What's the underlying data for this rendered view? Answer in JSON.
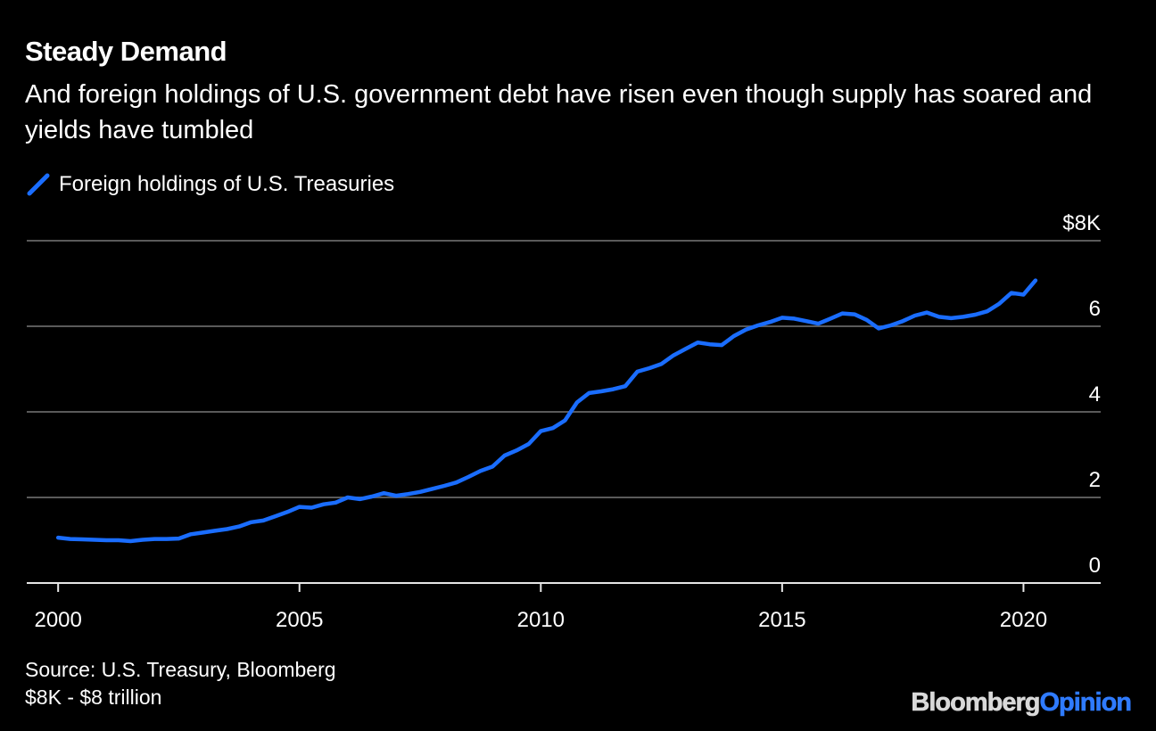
{
  "title": "Steady Demand",
  "subtitle": "And foreign holdings of U.S. government debt have risen even though supply has soared and yields have tumbled",
  "legend_label": "Foreign holdings of U.S. Treasuries",
  "source_line1": "Source: U.S. Treasury, Bloomberg",
  "source_line2": "$8K - $8 trillion",
  "logo": {
    "brand": "Bloomberg",
    "opinion": "Opinion"
  },
  "colors": {
    "background": "#000000",
    "line": "#1a6dff",
    "grid": "#5a5a5a",
    "text": "#ffffff",
    "logo_brand": "#d9d9d9",
    "logo_accent": "#2f7bff"
  },
  "chart_data": {
    "type": "line",
    "title": "Steady Demand",
    "subtitle": "And foreign holdings of U.S. government debt have risen even though supply has soared and yields have tumbled",
    "xlabel": "",
    "ylabel": "",
    "xlim": [
      1999.35,
      2021.6
    ],
    "ylim": [
      0,
      8
    ],
    "x_ticks": [
      2000,
      2005,
      2010,
      2015,
      2020
    ],
    "y_ticks": [
      0,
      2,
      4,
      6,
      8
    ],
    "y_tick_labels": [
      "0",
      "2",
      "4",
      "6",
      "$8K"
    ],
    "grid": true,
    "legend_position": "top-left",
    "series": [
      {
        "name": "Foreign holdings of U.S. Treasuries",
        "color": "#1a6dff",
        "points": [
          [
            2000.0,
            1.06
          ],
          [
            2000.25,
            1.03
          ],
          [
            2000.5,
            1.02
          ],
          [
            2000.75,
            1.01
          ],
          [
            2001.0,
            1.0
          ],
          [
            2001.25,
            1.0
          ],
          [
            2001.5,
            0.98
          ],
          [
            2001.75,
            1.01
          ],
          [
            2002.0,
            1.03
          ],
          [
            2002.25,
            1.03
          ],
          [
            2002.5,
            1.04
          ],
          [
            2002.75,
            1.14
          ],
          [
            2003.0,
            1.18
          ],
          [
            2003.25,
            1.22
          ],
          [
            2003.5,
            1.26
          ],
          [
            2003.75,
            1.32
          ],
          [
            2004.0,
            1.42
          ],
          [
            2004.25,
            1.46
          ],
          [
            2004.5,
            1.56
          ],
          [
            2004.75,
            1.66
          ],
          [
            2005.0,
            1.78
          ],
          [
            2005.25,
            1.76
          ],
          [
            2005.5,
            1.84
          ],
          [
            2005.75,
            1.88
          ],
          [
            2006.0,
            2.0
          ],
          [
            2006.25,
            1.96
          ],
          [
            2006.5,
            2.02
          ],
          [
            2006.75,
            2.1
          ],
          [
            2007.0,
            2.04
          ],
          [
            2007.25,
            2.08
          ],
          [
            2007.5,
            2.13
          ],
          [
            2007.75,
            2.2
          ],
          [
            2008.0,
            2.27
          ],
          [
            2008.25,
            2.35
          ],
          [
            2008.5,
            2.48
          ],
          [
            2008.75,
            2.62
          ],
          [
            2009.0,
            2.72
          ],
          [
            2009.25,
            2.98
          ],
          [
            2009.5,
            3.1
          ],
          [
            2009.75,
            3.25
          ],
          [
            2010.0,
            3.55
          ],
          [
            2010.25,
            3.62
          ],
          [
            2010.5,
            3.8
          ],
          [
            2010.75,
            4.22
          ],
          [
            2011.0,
            4.44
          ],
          [
            2011.25,
            4.48
          ],
          [
            2011.5,
            4.53
          ],
          [
            2011.75,
            4.6
          ],
          [
            2012.0,
            4.94
          ],
          [
            2012.25,
            5.02
          ],
          [
            2012.5,
            5.12
          ],
          [
            2012.75,
            5.32
          ],
          [
            2013.0,
            5.47
          ],
          [
            2013.25,
            5.62
          ],
          [
            2013.5,
            5.58
          ],
          [
            2013.75,
            5.56
          ],
          [
            2014.0,
            5.77
          ],
          [
            2014.25,
            5.92
          ],
          [
            2014.5,
            6.02
          ],
          [
            2014.75,
            6.1
          ],
          [
            2015.0,
            6.2
          ],
          [
            2015.25,
            6.18
          ],
          [
            2015.5,
            6.12
          ],
          [
            2015.75,
            6.06
          ],
          [
            2016.0,
            6.18
          ],
          [
            2016.25,
            6.3
          ],
          [
            2016.5,
            6.28
          ],
          [
            2016.75,
            6.15
          ],
          [
            2017.0,
            5.95
          ],
          [
            2017.25,
            6.02
          ],
          [
            2017.5,
            6.12
          ],
          [
            2017.75,
            6.25
          ],
          [
            2018.0,
            6.32
          ],
          [
            2018.25,
            6.22
          ],
          [
            2018.5,
            6.19
          ],
          [
            2018.75,
            6.22
          ],
          [
            2019.0,
            6.27
          ],
          [
            2019.25,
            6.35
          ],
          [
            2019.5,
            6.53
          ],
          [
            2019.75,
            6.78
          ],
          [
            2020.0,
            6.74
          ],
          [
            2020.25,
            7.07
          ]
        ]
      }
    ]
  }
}
